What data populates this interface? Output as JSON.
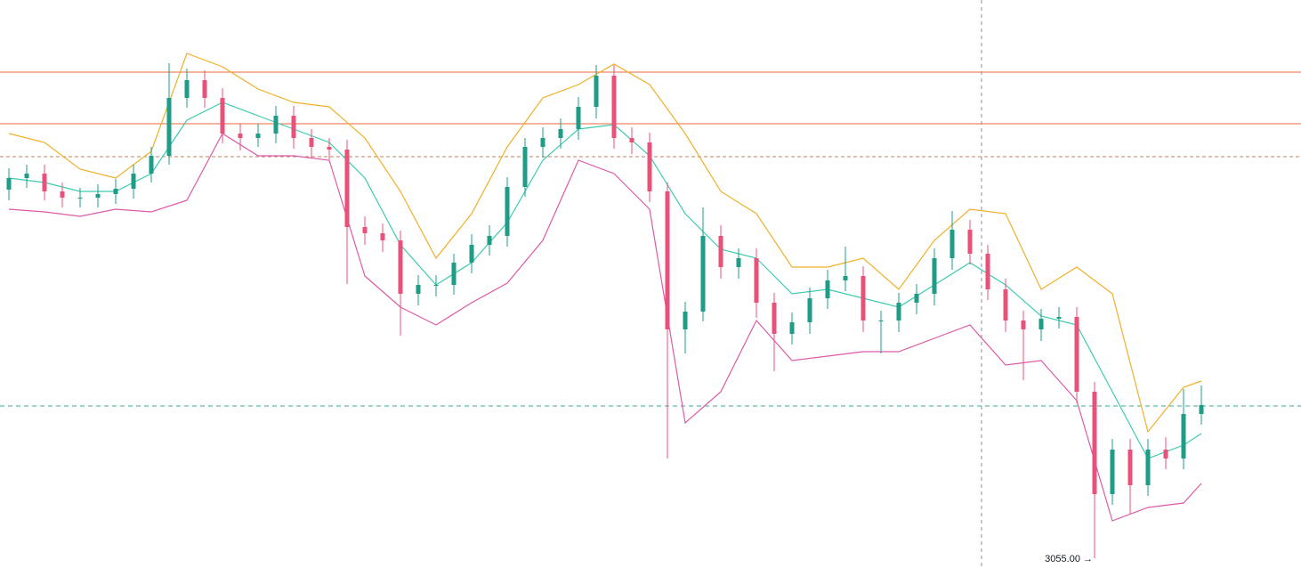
{
  "chart_data": {
    "type": "candlestick",
    "ylim": [
      3049.5,
      3368.5
    ],
    "up_color": "#1f9c86",
    "down_color": "#e8527a",
    "open": [
      3262,
      3268.5,
      3271,
      3261,
      3257.5,
      3257.5,
      3259.5,
      3262.5,
      3271,
      3281,
      3313.5,
      3323.5,
      3313.5,
      3293.5,
      3291,
      3293.5,
      3303.5,
      3291,
      3286,
      3284.5,
      3241,
      3237.5,
      3233.5,
      3203.5,
      3208.5,
      3208.5,
      3221,
      3231,
      3236,
      3263.5,
      3286,
      3291,
      3296,
      3308.5,
      3326,
      3291,
      3288.5,
      3261,
      3183.5,
      3193.5,
      3236,
      3218.5,
      3223.5,
      3198.5,
      3181,
      3187.5,
      3201,
      3211,
      3213.5,
      3188.5,
      3188.5,
      3198.5,
      3203.5,
      3223.5,
      3239.5,
      3226,
      3206,
      3188.5,
      3183.5,
      3189.5,
      3190.5,
      3148.5,
      3091,
      3116,
      3096,
      3116,
      3111,
      3136
    ],
    "high": [
      3274,
      3276,
      3276,
      3266,
      3263,
      3265,
      3268,
      3276,
      3286,
      3333,
      3330,
      3329,
      3319,
      3299,
      3299,
      3309,
      3309,
      3296,
      3291,
      3290,
      3247,
      3243,
      3239,
      3214,
      3214,
      3226,
      3237,
      3242,
      3269,
      3291,
      3297,
      3302,
      3314,
      3332,
      3332,
      3297,
      3294,
      3266,
      3199,
      3252,
      3242,
      3229,
      3229,
      3204,
      3193,
      3207,
      3217,
      3230,
      3219,
      3194,
      3204,
      3209,
      3229,
      3250,
      3245,
      3231,
      3212,
      3194,
      3195,
      3196,
      3196,
      3154,
      3122,
      3122,
      3122,
      3123,
      3150,
      3152
    ],
    "low": [
      3256,
      3263,
      3256,
      3252,
      3252,
      3252,
      3254,
      3257,
      3266,
      3276,
      3308,
      3308,
      3288,
      3284,
      3286,
      3288,
      3285,
      3280,
      3279,
      3209,
      3231,
      3227,
      3180,
      3197,
      3202,
      3203,
      3215,
      3225,
      3230,
      3258,
      3280,
      3285,
      3290,
      3302,
      3285,
      3282,
      3255,
      3111,
      3170,
      3188,
      3212,
      3212,
      3190,
      3160,
      3175,
      3181,
      3195,
      3205,
      3182,
      3170,
      3182,
      3192,
      3197,
      3217,
      3220,
      3200,
      3182,
      3155,
      3177,
      3184,
      3142,
      3055,
      3085,
      3080,
      3090,
      3105,
      3105,
      3130
    ],
    "close": [
      3268.5,
      3271,
      3261,
      3257.5,
      3257.5,
      3259.5,
      3262.5,
      3271,
      3281,
      3313.5,
      3323.5,
      3313.5,
      3293.5,
      3291,
      3293.5,
      3303.5,
      3291,
      3286,
      3284.5,
      3241,
      3237.5,
      3233.5,
      3203.5,
      3208.5,
      3208.5,
      3221,
      3231,
      3236,
      3263.5,
      3286,
      3291,
      3296,
      3308.5,
      3326,
      3291,
      3288.5,
      3261,
      3183.5,
      3193.5,
      3236,
      3218.5,
      3223.5,
      3198.5,
      3181,
      3187.5,
      3201,
      3211,
      3213.5,
      3188.5,
      3188.5,
      3198.5,
      3203.5,
      3223.5,
      3239.5,
      3226,
      3206,
      3188.5,
      3183.5,
      3189.5,
      3190.5,
      3148.5,
      3091,
      3116,
      3096,
      3116,
      3111,
      3136,
      3141
    ],
    "bands": {
      "x": [
        0,
        2,
        4,
        6,
        8,
        10,
        12,
        14,
        16,
        18,
        20,
        22,
        24,
        26,
        28,
        30,
        32,
        34,
        36,
        38,
        40,
        42,
        44,
        46,
        48,
        50,
        52,
        54,
        56,
        58,
        60,
        62,
        64,
        66,
        67
      ],
      "series": [
        {
          "color": "#f0b02a",
          "values": [
            3293.5,
            3288.5,
            3273.5,
            3268.5,
            3283.5,
            3338.5,
            3331,
            3318.5,
            3311,
            3308.5,
            3291,
            3261,
            3223.5,
            3248.5,
            3286,
            3313.5,
            3321,
            3332.5,
            3321,
            3293.5,
            3261,
            3248.5,
            3218.5,
            3218.5,
            3223.5,
            3206,
            3233.5,
            3251,
            3248.5,
            3206,
            3218.5,
            3203.5,
            3126,
            3151,
            3154.5
          ]
        },
        {
          "color": "#3ecbb0",
          "values": [
            3268.5,
            3266,
            3261,
            3261,
            3271,
            3301,
            3311,
            3303.5,
            3296,
            3288.5,
            3268.5,
            3231,
            3208.5,
            3221,
            3243.5,
            3278.5,
            3296,
            3298.5,
            3281,
            3248.5,
            3228.5,
            3223.5,
            3203.5,
            3206,
            3201,
            3196,
            3208.5,
            3221,
            3208.5,
            3191,
            3186,
            3148.5,
            3111,
            3118.5,
            3125
          ]
        },
        {
          "color": "#de5aa6",
          "values": [
            3251,
            3249.5,
            3247,
            3251,
            3249.5,
            3256,
            3293.5,
            3281,
            3281,
            3278.5,
            3213.5,
            3196,
            3186,
            3198.5,
            3209.5,
            3233.5,
            3278.5,
            3271,
            3251,
            3131,
            3148.5,
            3188.5,
            3166,
            3168.5,
            3171,
            3171,
            3178.5,
            3186,
            3163.5,
            3166,
            3143.5,
            3076,
            3083.5,
            3086,
            3097
          ]
        }
      ]
    },
    "levels": [
      3328,
      3299
    ],
    "level_color": "#ee6a3c",
    "dashed_level": 3280.5,
    "dashed_level_color": "#c0805a",
    "price_line": 3140.5,
    "price_line_color": "#3aa89a",
    "low_label": "3055.00 →"
  }
}
